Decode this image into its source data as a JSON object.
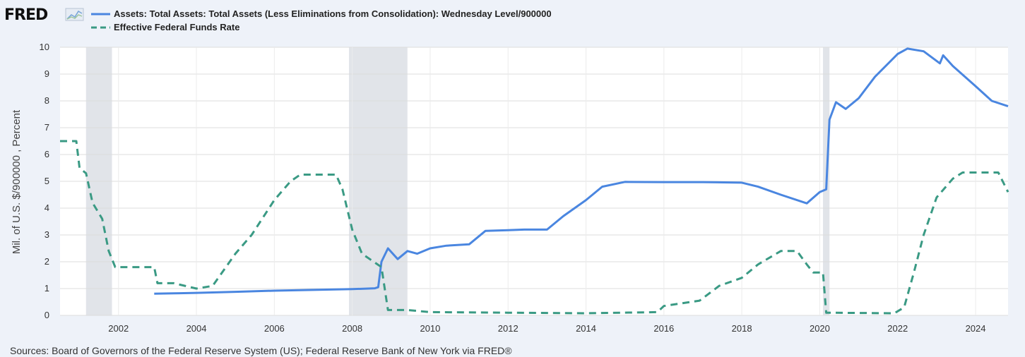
{
  "brand": {
    "logo_text": "FRED",
    "logo_icon": "chart-line-icon"
  },
  "chart_data": {
    "type": "line",
    "xlim": [
      "2000-07-01",
      "2024-11-01"
    ],
    "ylim": [
      0,
      10
    ],
    "ylabel": "Mil. of U.S. $/900000 , Percent",
    "grid": true,
    "legend_position": "top-left",
    "x_ticks": [
      "2002",
      "2004",
      "2006",
      "2008",
      "2010",
      "2012",
      "2014",
      "2016",
      "2018",
      "2020",
      "2022",
      "2024"
    ],
    "y_ticks": [
      "0",
      "1",
      "2",
      "3",
      "4",
      "5",
      "6",
      "7",
      "8",
      "9",
      "10"
    ],
    "recessions": [
      {
        "start": "2001-03",
        "end": "2001-11"
      },
      {
        "start": "2007-12",
        "end": "2009-06"
      },
      {
        "start": "2020-02",
        "end": "2020-04"
      }
    ],
    "series": [
      {
        "name": "Assets: Total Assets: Total Assets (Less Eliminations from Consolidation): Wednesday Level/900000",
        "color": "#4a86e0",
        "style": "solid",
        "points": [
          [
            "2002-12",
            0.81
          ],
          [
            "2003-06",
            0.82
          ],
          [
            "2004-01",
            0.84
          ],
          [
            "2005-01",
            0.88
          ],
          [
            "2006-01",
            0.92
          ],
          [
            "2007-01",
            0.95
          ],
          [
            "2008-01",
            0.98
          ],
          [
            "2008-08",
            1.01
          ],
          [
            "2008-09",
            1.05
          ],
          [
            "2008-10",
            2.0
          ],
          [
            "2008-12",
            2.5
          ],
          [
            "2009-03",
            2.1
          ],
          [
            "2009-06",
            2.4
          ],
          [
            "2009-09",
            2.3
          ],
          [
            "2010-01",
            2.5
          ],
          [
            "2010-06",
            2.6
          ],
          [
            "2011-01",
            2.65
          ],
          [
            "2011-06",
            3.15
          ],
          [
            "2012-01",
            3.18
          ],
          [
            "2012-06",
            3.2
          ],
          [
            "2013-01",
            3.2
          ],
          [
            "2013-06",
            3.7
          ],
          [
            "2014-01",
            4.3
          ],
          [
            "2014-06",
            4.8
          ],
          [
            "2015-01",
            4.98
          ],
          [
            "2016-01",
            4.97
          ],
          [
            "2017-01",
            4.97
          ],
          [
            "2018-01",
            4.95
          ],
          [
            "2018-06",
            4.8
          ],
          [
            "2019-01",
            4.5
          ],
          [
            "2019-09",
            4.18
          ],
          [
            "2020-01",
            4.6
          ],
          [
            "2020-03",
            4.7
          ],
          [
            "2020-04",
            7.3
          ],
          [
            "2020-06",
            7.95
          ],
          [
            "2020-09",
            7.7
          ],
          [
            "2021-01",
            8.1
          ],
          [
            "2021-06",
            8.9
          ],
          [
            "2022-01",
            9.75
          ],
          [
            "2022-04",
            9.95
          ],
          [
            "2022-09",
            9.85
          ],
          [
            "2023-02",
            9.4
          ],
          [
            "2023-03",
            9.7
          ],
          [
            "2023-06",
            9.3
          ],
          [
            "2024-01",
            8.55
          ],
          [
            "2024-06",
            8.0
          ],
          [
            "2024-11",
            7.8
          ]
        ]
      },
      {
        "name": "Effective Federal Funds Rate",
        "color": "#3a9a84",
        "style": "dashed",
        "points": [
          [
            "2000-07",
            6.5
          ],
          [
            "2000-12",
            6.5
          ],
          [
            "2001-01",
            5.5
          ],
          [
            "2001-03",
            5.3
          ],
          [
            "2001-05",
            4.2
          ],
          [
            "2001-08",
            3.6
          ],
          [
            "2001-10",
            2.4
          ],
          [
            "2001-12",
            1.8
          ],
          [
            "2002-12",
            1.8
          ],
          [
            "2003-01",
            1.2
          ],
          [
            "2003-06",
            1.2
          ],
          [
            "2004-01",
            1.0
          ],
          [
            "2004-06",
            1.1
          ],
          [
            "2005-01",
            2.3
          ],
          [
            "2005-06",
            3.0
          ],
          [
            "2006-01",
            4.3
          ],
          [
            "2006-06",
            5.0
          ],
          [
            "2006-09",
            5.25
          ],
          [
            "2007-08",
            5.25
          ],
          [
            "2007-10",
            4.7
          ],
          [
            "2008-01",
            3.2
          ],
          [
            "2008-04",
            2.3
          ],
          [
            "2008-10",
            1.8
          ],
          [
            "2008-12",
            0.2
          ],
          [
            "2009-06",
            0.2
          ],
          [
            "2010-01",
            0.12
          ],
          [
            "2012-01",
            0.1
          ],
          [
            "2014-01",
            0.08
          ],
          [
            "2015-11",
            0.12
          ],
          [
            "2016-01",
            0.35
          ],
          [
            "2016-12",
            0.55
          ],
          [
            "2017-06",
            1.1
          ],
          [
            "2018-01",
            1.4
          ],
          [
            "2018-06",
            1.9
          ],
          [
            "2019-01",
            2.4
          ],
          [
            "2019-06",
            2.4
          ],
          [
            "2019-09",
            1.9
          ],
          [
            "2019-11",
            1.6
          ],
          [
            "2020-02",
            1.6
          ],
          [
            "2020-03",
            0.1
          ],
          [
            "2021-12",
            0.08
          ],
          [
            "2022-03",
            0.3
          ],
          [
            "2022-06",
            1.6
          ],
          [
            "2022-09",
            3.0
          ],
          [
            "2023-01",
            4.4
          ],
          [
            "2023-06",
            5.1
          ],
          [
            "2023-09",
            5.33
          ],
          [
            "2024-08",
            5.33
          ],
          [
            "2024-11",
            4.6
          ]
        ]
      }
    ],
    "source": "Sources: Board of Governors of the Federal Reserve System (US); Federal Reserve Bank of New York via FRED®"
  }
}
